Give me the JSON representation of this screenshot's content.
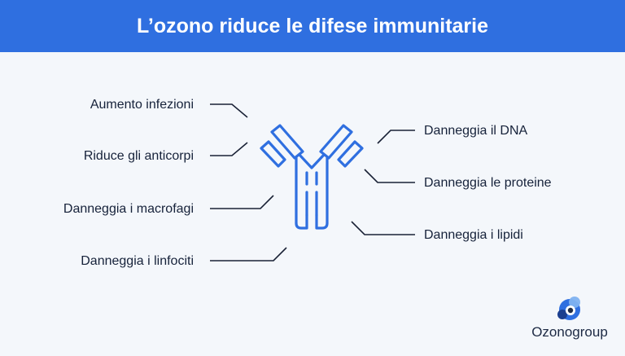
{
  "header": {
    "title": "L’ozono riduce le difese immunitarie"
  },
  "left_labels": [
    "Aumento infezioni",
    "Riduce gli anticorpi",
    "Danneggia i macrofagi",
    "Danneggia i linfociti"
  ],
  "right_labels": [
    "Danneggia il DNA",
    "Danneggia le proteine",
    "Danneggia i lipidi"
  ],
  "brand": {
    "name": "Ozonogroup"
  },
  "colors": {
    "header_bg": "#2f6fe0",
    "antibody": "#2f6fe0",
    "leader_line": "#1a2236",
    "background": "#f4f7fb"
  }
}
